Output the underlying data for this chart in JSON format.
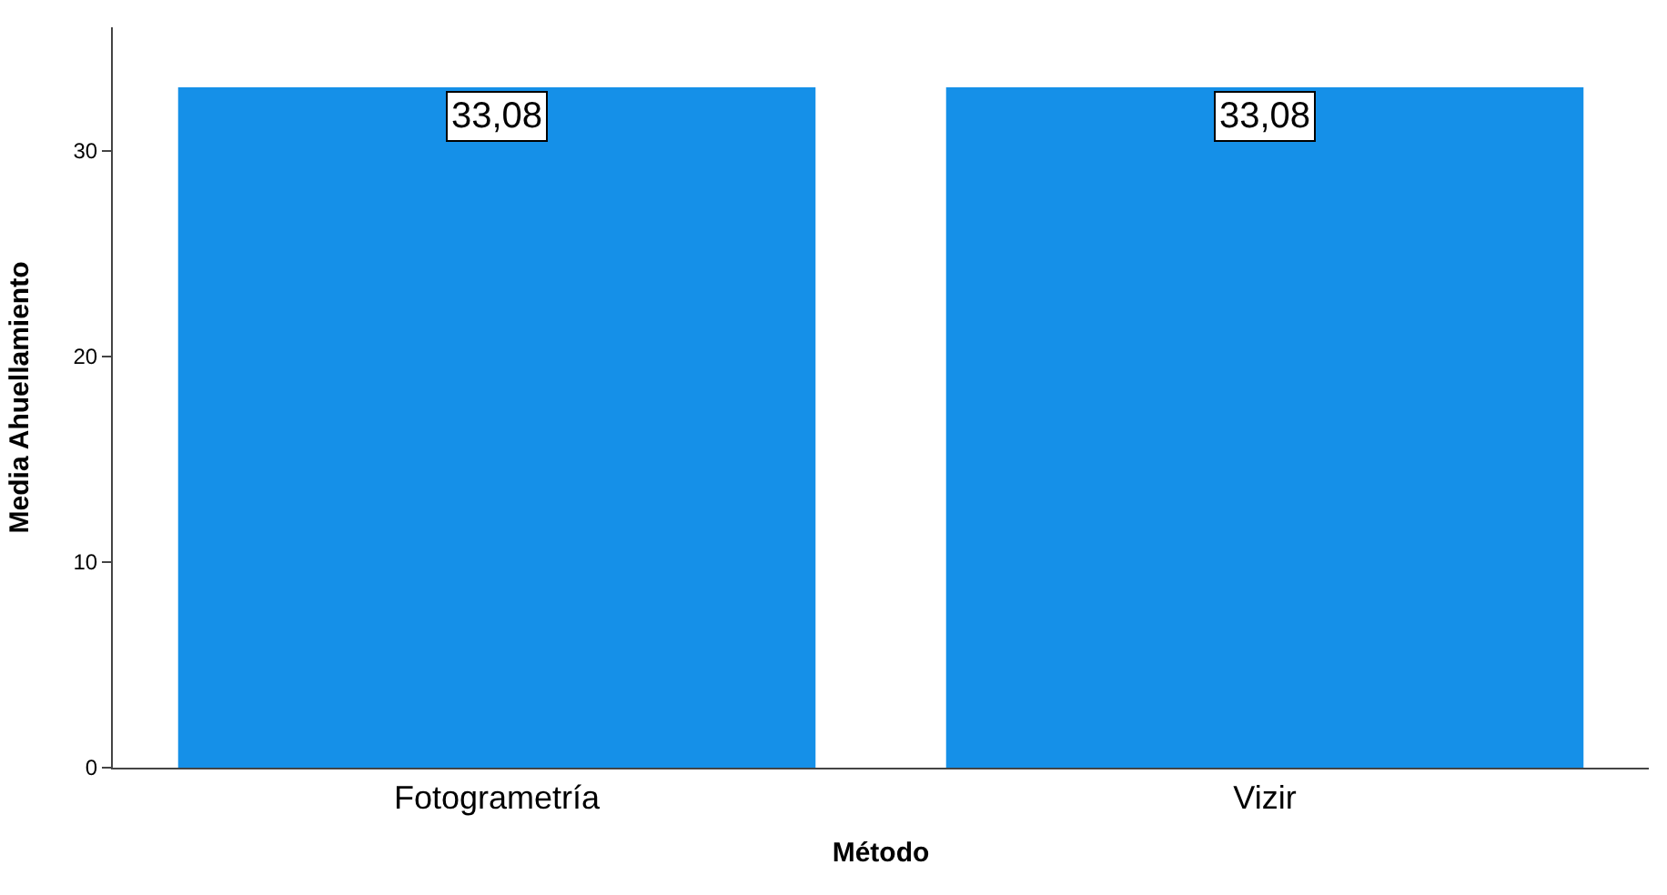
{
  "chart_data": {
    "type": "bar",
    "xlabel": "Método",
    "ylabel": "Media Ahuellamiento",
    "categories": [
      "Fotogrametría",
      "Vizir"
    ],
    "values": [
      33.08,
      33.08
    ],
    "color": "#1590e8",
    "value_labels": [
      "33,08",
      "33,08"
    ],
    "ylim": [
      0,
      36
    ],
    "yticks": [
      0,
      10,
      20,
      30
    ]
  }
}
